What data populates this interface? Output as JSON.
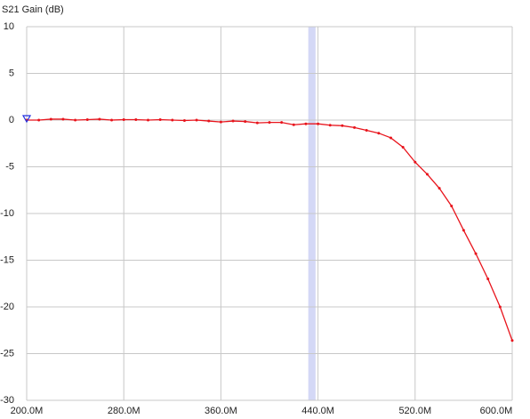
{
  "chart_data": {
    "type": "line",
    "y_label": "S21 Gain (dB)",
    "x": [
      200000000,
      210000000,
      220000000,
      230000000,
      240000000,
      250000000,
      260000000,
      270000000,
      280000000,
      290000000,
      300000000,
      310000000,
      320000000,
      330000000,
      340000000,
      350000000,
      360000000,
      370000000,
      380000000,
      390000000,
      400000000,
      410000000,
      420000000,
      430000000,
      440000000,
      450000000,
      460000000,
      470000000,
      480000000,
      490000000,
      500000000,
      510000000,
      520000000,
      530000000,
      540000000,
      550000000,
      560000000,
      570000000,
      580000000,
      590000000,
      600000000
    ],
    "series": [
      {
        "name": "S21",
        "color": "#e8141c",
        "values": [
          0,
          0,
          0.1,
          0.1,
          0,
          0.05,
          0.1,
          0,
          0.05,
          0.05,
          0,
          0.05,
          0,
          -0.05,
          0,
          -0.1,
          -0.2,
          -0.1,
          -0.15,
          -0.3,
          -0.25,
          -0.25,
          -0.5,
          -0.4,
          -0.4,
          -0.55,
          -0.6,
          -0.8,
          -1.1,
          -1.4,
          -1.9,
          -2.9,
          -4.5,
          -5.8,
          -7.3,
          -9.2,
          -11.8,
          -14.3,
          -17.0,
          -20.0,
          -23.6
        ]
      }
    ],
    "xlim": [
      200000000,
      600000000
    ],
    "xticks": [
      {
        "value": 200000000,
        "label": "200.0M"
      },
      {
        "value": 280000000,
        "label": "280.0M"
      },
      {
        "value": 360000000,
        "label": "360.0M"
      },
      {
        "value": 440000000,
        "label": "440.0M"
      },
      {
        "value": 520000000,
        "label": "520.0M"
      },
      {
        "value": 600000000,
        "label": "600.0M"
      }
    ],
    "ylim": [
      -30,
      10
    ],
    "yticks": [
      -30,
      -25,
      -20,
      -15,
      -10,
      -5,
      0,
      5,
      10
    ],
    "grid": true,
    "highlight_band": [
      432000000,
      438000000
    ],
    "marker": {
      "x": 200000000,
      "y": 0,
      "color": "#2030e0"
    }
  }
}
